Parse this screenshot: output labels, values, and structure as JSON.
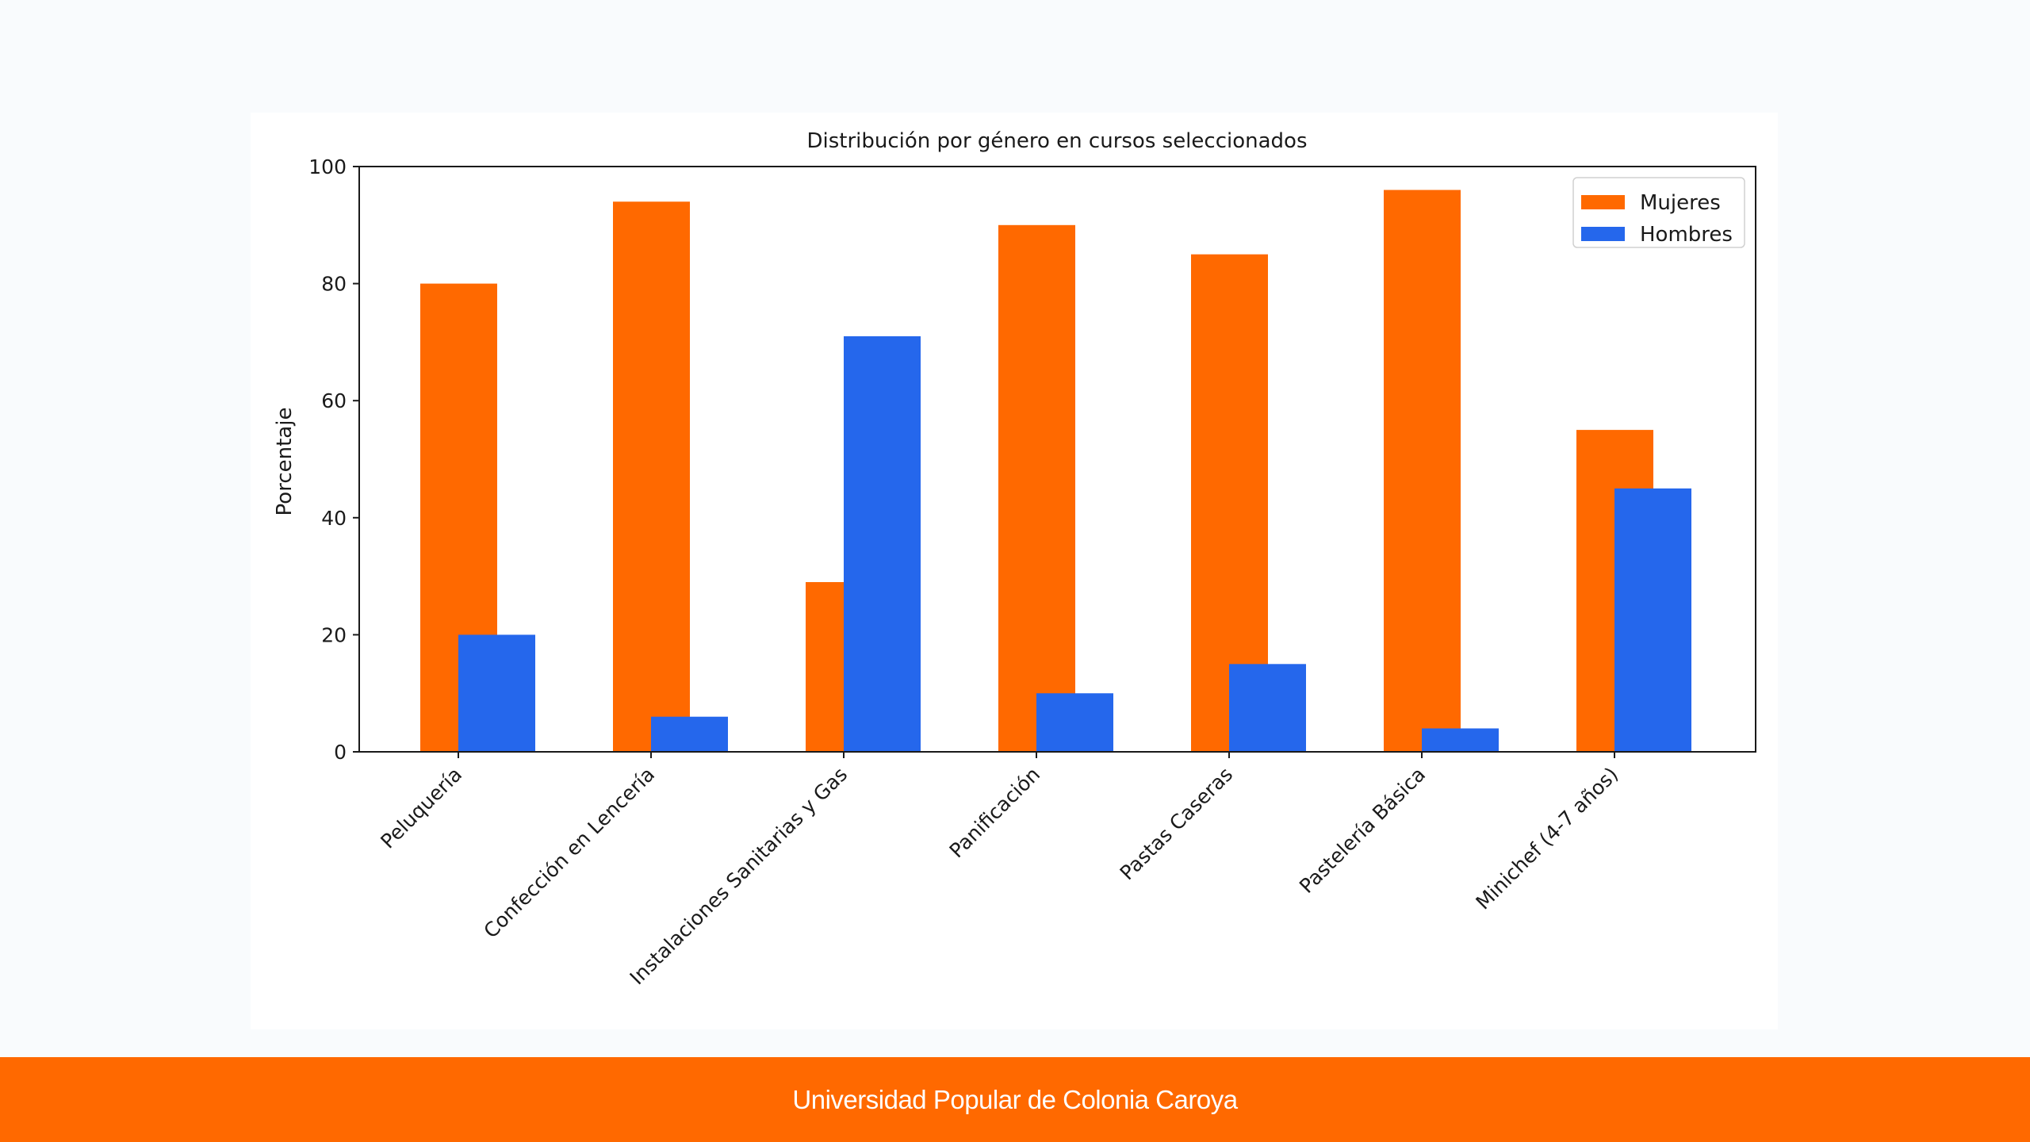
{
  "footer": {
    "text": "Universidad Popular de Colonia Caroya"
  },
  "colors": {
    "mujeres": "#ff6900",
    "hombres": "#2567ec",
    "footer_bg": "#ff6900",
    "page_bg": "#f9fbfd"
  },
  "chart_data": {
    "type": "bar",
    "title": "Distribución por género en cursos seleccionados",
    "xlabel": "",
    "ylabel": "Porcentaje",
    "ylim": [
      0,
      100
    ],
    "yticks": [
      0,
      20,
      40,
      60,
      80,
      100
    ],
    "legend_position": "top-right",
    "grid": false,
    "categories": [
      "Peluquería",
      "Confección en Lencería",
      "Instalaciones Sanitarias y Gas",
      "Panificación",
      "Pastas Caseras",
      "Pastelería Básica",
      "Minichef (4-7 años)"
    ],
    "series": [
      {
        "name": "Mujeres",
        "color": "#ff6900",
        "values": [
          80,
          94,
          29,
          90,
          85,
          96,
          55
        ]
      },
      {
        "name": "Hombres",
        "color": "#2567ec",
        "values": [
          20,
          6,
          71,
          10,
          15,
          4,
          45
        ]
      }
    ]
  }
}
